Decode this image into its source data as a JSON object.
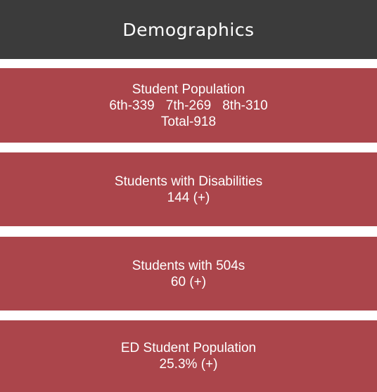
{
  "header": {
    "title": "Demographics"
  },
  "cards": [
    {
      "title": "Student Population",
      "items": [
        "6th-339",
        "7th-269",
        "8th-310"
      ],
      "total": "Total-918"
    },
    {
      "title": "Students with Disabilities",
      "value": "144 (+)"
    },
    {
      "title": "Students with 504s",
      "value": "60 (+)"
    },
    {
      "title": "ED Student Population",
      "value": "25.3% (+)"
    }
  ]
}
